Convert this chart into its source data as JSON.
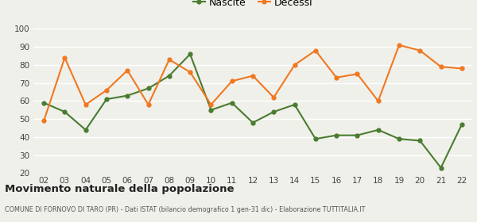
{
  "years": [
    "02",
    "03",
    "04",
    "05",
    "06",
    "07",
    "08",
    "09",
    "10",
    "11",
    "12",
    "13",
    "14",
    "15",
    "16",
    "17",
    "18",
    "19",
    "20",
    "21",
    "22"
  ],
  "nascite": [
    59,
    54,
    44,
    61,
    63,
    67,
    74,
    86,
    55,
    59,
    48,
    54,
    58,
    39,
    41,
    41,
    44,
    39,
    38,
    23,
    47
  ],
  "decessi": [
    49,
    84,
    58,
    66,
    77,
    58,
    83,
    76,
    58,
    71,
    74,
    62,
    80,
    88,
    73,
    75,
    60,
    91,
    88,
    79,
    78
  ],
  "nascite_color": "#4a7c2f",
  "decessi_color": "#f07820",
  "bg_color": "#f0f0eb",
  "grid_color": "#ffffff",
  "title": "Movimento naturale della popolazione",
  "subtitle": "COMUNE DI FORNOVO DI TARO (PR) - Dati ISTAT (bilancio demografico 1 gen-31 dic) - Elaborazione TUTTITALIA.IT",
  "legend_nascite": "Nascite",
  "legend_decessi": "Decessi",
  "ylim": [
    20,
    100
  ],
  "yticks": [
    20,
    30,
    40,
    50,
    60,
    70,
    80,
    90,
    100
  ]
}
